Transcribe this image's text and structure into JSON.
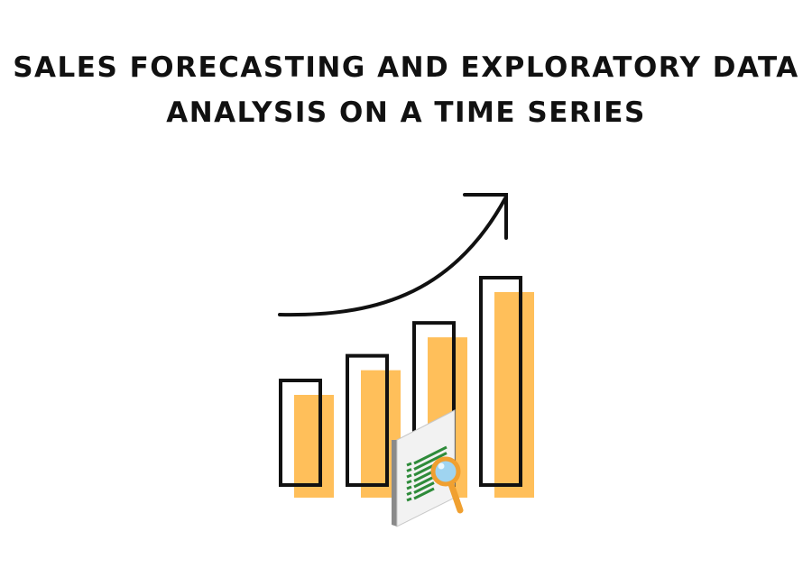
{
  "title": {
    "line1": "SALES FORECASTING AND EXPLORATORY DATA",
    "line2": "ANALYSIS ON A TIME SERIES"
  },
  "illustration": {
    "icon": "growth-bar-chart-with-report-and-magnifier",
    "bar_count": 4,
    "relative_bar_heights": [
      0.5,
      0.62,
      0.78,
      1.0
    ],
    "colors": {
      "fill": "#FFBF5A",
      "outline": "#111111",
      "report_lines": "#2E8B3A",
      "magnifier": "#F0A030",
      "lens": "#9FD4F0",
      "paper": "#F2F2F2",
      "paper_edge": "#8A8A8A"
    }
  }
}
